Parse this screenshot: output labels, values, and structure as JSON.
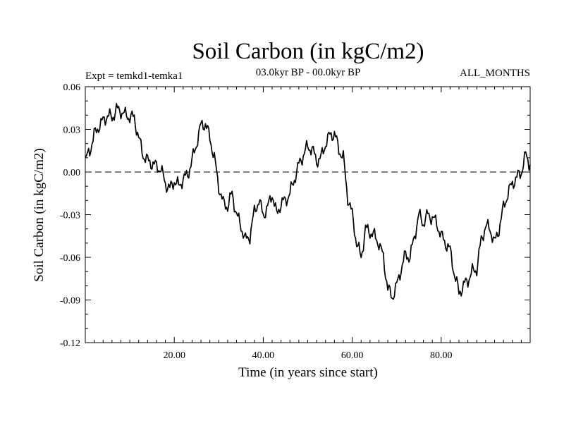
{
  "chart_data": {
    "type": "line",
    "title": "Soil Carbon (in kgC/m2)",
    "subtitle_left": "Expt = temkd1-temka1",
    "subtitle_center": "03.0kyr BP - 00.0kyr BP",
    "subtitle_right": "ALL_MONTHS",
    "xlabel": "Time (in years since start)",
    "ylabel": "Soil Carbon (in kgC/m2)",
    "xlim": [
      0,
      100
    ],
    "ylim": [
      -0.12,
      0.06
    ],
    "x_ticks": [
      {
        "value": 20,
        "label": "20.00"
      },
      {
        "value": 40,
        "label": "40.00"
      },
      {
        "value": 60,
        "label": "60.00"
      },
      {
        "value": 80,
        "label": "80.00"
      }
    ],
    "y_ticks": [
      {
        "value": 0.06,
        "label": "0.06"
      },
      {
        "value": 0.03,
        "label": "0.03"
      },
      {
        "value": 0.0,
        "label": "0.00"
      },
      {
        "value": -0.03,
        "label": "-0.03"
      },
      {
        "value": -0.06,
        "label": "-0.06"
      },
      {
        "value": -0.09,
        "label": "-0.09"
      },
      {
        "value": -0.12,
        "label": "-0.12"
      }
    ],
    "zero_line": {
      "value": 0.0,
      "style": "dashed"
    },
    "series": [
      {
        "name": "Soil Carbon",
        "color": "#000000",
        "x": [
          0,
          1,
          2,
          3,
          4,
          5,
          6,
          7,
          8,
          9,
          10,
          11,
          12,
          13,
          14,
          15,
          16,
          17,
          18,
          19,
          20,
          21,
          22,
          23,
          24,
          25,
          26,
          27,
          28,
          29,
          30,
          31,
          32,
          33,
          34,
          35,
          36,
          37,
          38,
          39,
          40,
          41,
          42,
          43,
          44,
          45,
          46,
          47,
          48,
          49,
          50,
          51,
          52,
          53,
          54,
          55,
          56,
          57,
          58,
          59,
          60,
          61,
          62,
          63,
          64,
          65,
          66,
          67,
          68,
          69,
          70,
          71,
          72,
          73,
          74,
          75,
          76,
          77,
          78,
          79,
          80,
          81,
          82,
          83,
          84,
          85,
          86,
          87,
          88,
          89,
          90,
          91,
          92,
          93,
          94,
          95,
          96,
          97,
          98,
          99,
          100
        ],
        "y": [
          0.008,
          0.015,
          0.026,
          0.032,
          0.036,
          0.04,
          0.038,
          0.044,
          0.043,
          0.04,
          0.039,
          0.038,
          0.024,
          0.012,
          0.008,
          0.006,
          0.004,
          0.002,
          -0.008,
          -0.012,
          -0.006,
          -0.01,
          -0.005,
          -0.002,
          0.008,
          0.02,
          0.033,
          0.034,
          0.024,
          0.01,
          -0.01,
          -0.022,
          -0.024,
          -0.015,
          -0.03,
          -0.038,
          -0.048,
          -0.045,
          -0.028,
          -0.02,
          -0.03,
          -0.025,
          -0.015,
          -0.03,
          -0.022,
          -0.02,
          -0.015,
          -0.005,
          0.005,
          0.012,
          0.018,
          0.016,
          0.008,
          0.01,
          0.02,
          0.026,
          0.027,
          0.016,
          0.01,
          -0.018,
          -0.03,
          -0.05,
          -0.06,
          -0.04,
          -0.042,
          -0.045,
          -0.05,
          -0.06,
          -0.082,
          -0.088,
          -0.08,
          -0.068,
          -0.058,
          -0.06,
          -0.045,
          -0.03,
          -0.036,
          -0.03,
          -0.032,
          -0.036,
          -0.045,
          -0.05,
          -0.055,
          -0.072,
          -0.085,
          -0.08,
          -0.076,
          -0.07,
          -0.068,
          -0.048,
          -0.038,
          -0.04,
          -0.05,
          -0.04,
          -0.025,
          -0.015,
          -0.008,
          -0.004,
          0.0,
          0.012,
          0.005
        ]
      }
    ]
  }
}
